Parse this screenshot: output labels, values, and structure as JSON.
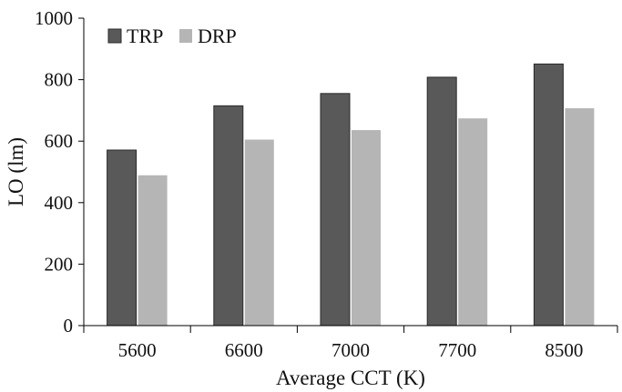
{
  "chart_data": {
    "type": "bar",
    "title": "",
    "xlabel": "Average CCT (K)",
    "ylabel": "LO (lm)",
    "categories": [
      "5600",
      "6600",
      "7000",
      "7700",
      "8500"
    ],
    "series": [
      {
        "name": "TRP",
        "values": [
          571,
          715,
          755,
          808,
          851
        ],
        "color": "#595959"
      },
      {
        "name": "DRP",
        "values": [
          489,
          605,
          636,
          674,
          707
        ],
        "color": "#b5b5b5"
      }
    ],
    "ylim": [
      0,
      1000
    ],
    "yticks": [
      0,
      200,
      400,
      600,
      800,
      1000
    ],
    "grid": false,
    "legend_position": "top-left"
  }
}
